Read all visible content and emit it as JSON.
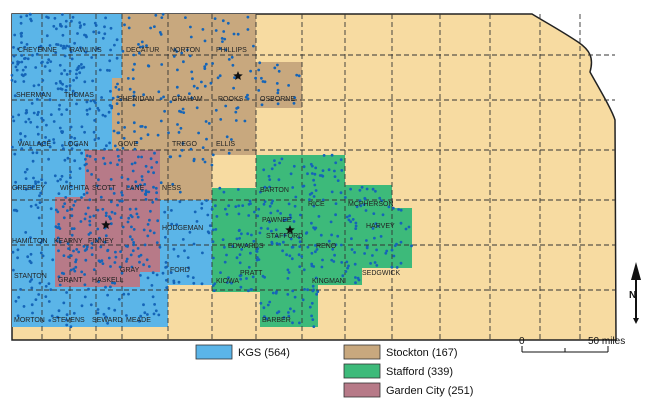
{
  "colors": {
    "other": "#f7dba1",
    "kgs": "#5bb5e8",
    "stockton": "#c8a87e",
    "stafford": "#3dba7a",
    "garden_city": "#b77a88",
    "well_dot": "#1565b8",
    "star": "#111111"
  },
  "county_labels": [
    "CHEYENNE",
    "RAWLINS",
    "DECATUR",
    "NORTON",
    "PHILLIPS",
    "SHERMAN",
    "THOMAS",
    "SHERIDAN",
    "GRAHAM",
    "ROOKS",
    "OSBORNE",
    "WALLACE",
    "LOGAN",
    "GOVE",
    "TREGO",
    "ELLIS",
    "GREELEY",
    "WICHITA",
    "SCOTT",
    "LANE",
    "NESS",
    "BARTON",
    "RICE",
    "MCPHERSON",
    "PAWNEE",
    "HODGEMAN",
    "STAFFORD",
    "RENO",
    "HARVEY",
    "HAMILTON",
    "KEARNY",
    "FINNEY",
    "EDWARDS",
    "STANTON",
    "GRANT",
    "HASKELL",
    "GRAY",
    "FORD",
    "PRATT",
    "KIOWA",
    "KINGMAN",
    "SEDGWICK",
    "MORTON",
    "STEVENS",
    "SEWARD",
    "MEADE",
    "BARBER"
  ],
  "legend": [
    {
      "label": "KGS (564)",
      "color_key": "kgs"
    },
    {
      "label": "Stockton (167)",
      "color_key": "stockton"
    },
    {
      "label": "Stafford (339)",
      "color_key": "stafford"
    },
    {
      "label": "Garden City (251)",
      "color_key": "garden_city"
    }
  ],
  "scale": {
    "start": "0",
    "end": "50 miles"
  },
  "north": "N"
}
